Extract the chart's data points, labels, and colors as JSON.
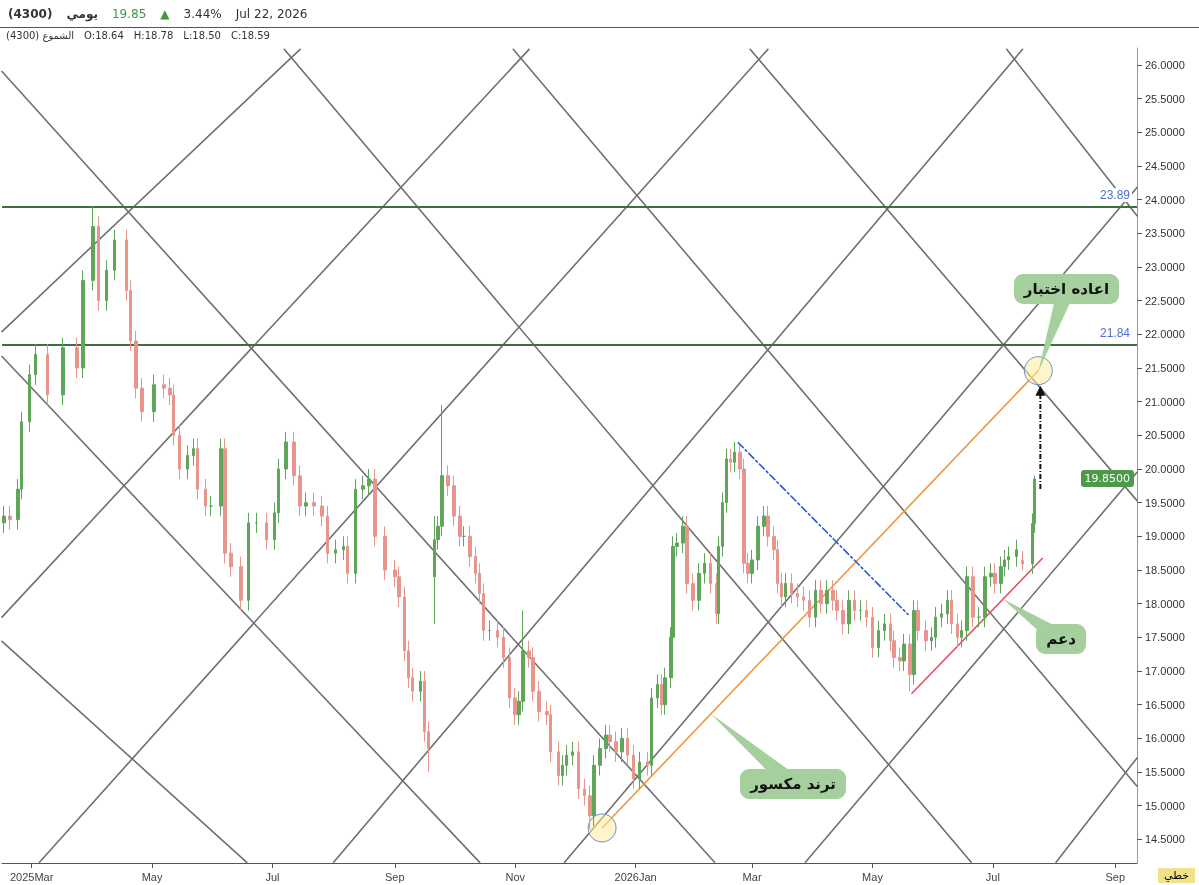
{
  "chart_data": {
    "type": "candlestick",
    "title": "(4300)",
    "subtitle": "يومي",
    "xlim": [
      "2025-02-14",
      "2026-09-12"
    ],
    "xticks": [
      {
        "value": "2025-03-01",
        "label": "2025Mar"
      },
      {
        "value": "2025-05-01",
        "label": "May"
      },
      {
        "value": "2025-07-01",
        "label": "Jul"
      },
      {
        "value": "2025-09-01",
        "label": "Sep"
      },
      {
        "value": "2025-11-01",
        "label": "Nov"
      },
      {
        "value": "2026-01-01",
        "label": "2026Jan"
      },
      {
        "value": "2026-03-01",
        "label": "Mar"
      },
      {
        "value": "2026-05-01",
        "label": "May"
      },
      {
        "value": "2026-07-01",
        "label": "Jul"
      },
      {
        "value": "2026-09-01",
        "label": "Sep"
      }
    ],
    "ylim": [
      14.15,
      26.25
    ],
    "yticks": [
      {
        "value": 14.5,
        "label": "14.5000"
      },
      {
        "value": 15,
        "label": "15.0000"
      },
      {
        "value": 15.5,
        "label": "15.5000"
      },
      {
        "value": 16,
        "label": "16.0000"
      },
      {
        "value": 16.5,
        "label": "16.5000"
      },
      {
        "value": 17,
        "label": "17.0000"
      },
      {
        "value": 17.5,
        "label": "17.5000"
      },
      {
        "value": 18,
        "label": "18.0000"
      },
      {
        "value": 18.5,
        "label": "18.5000"
      },
      {
        "value": 19,
        "label": "19.0000"
      },
      {
        "value": 19.5,
        "label": "19.5000"
      },
      {
        "value": 20,
        "label": "20.0000"
      },
      {
        "value": 20.5,
        "label": "20.5000"
      },
      {
        "value": 21,
        "label": "21.0000"
      },
      {
        "value": 21.5,
        "label": "21.5000"
      },
      {
        "value": 22,
        "label": "22.0000"
      },
      {
        "value": 22.5,
        "label": "22.5000"
      },
      {
        "value": 23,
        "label": "23.0000"
      },
      {
        "value": 23.5,
        "label": "23.5000"
      },
      {
        "value": 24,
        "label": "24.0000"
      },
      {
        "value": 24.5,
        "label": "24.5000"
      },
      {
        "value": 25,
        "label": "25.0000"
      },
      {
        "value": 25.5,
        "label": "25.5000"
      },
      {
        "value": 26,
        "label": "26.0000"
      }
    ],
    "ref_lines": [
      {
        "axis": "y",
        "value": 23.89,
        "label": "23.89",
        "color": "#3f6e3f"
      },
      {
        "axis": "y",
        "value": 21.84,
        "label": "21.84",
        "color": "#3f6e3f"
      }
    ],
    "annotations": [
      "19.85",
      "▲",
      "3.44%",
      "Jul 22, 2026",
      "الشموع (4300)",
      "O:18.64",
      "H:18.78",
      "L:18.50",
      "C:18.59",
      "خطي",
      "19.8500",
      "اعاده اختبار",
      "ترند مكسور",
      "دعم"
    ],
    "series": [
      {
        "type": "line",
        "color": "#707070",
        "x": [
          "2025-02-14",
          "2025-07-15"
        ],
        "values": [
          22.04,
          26.23
        ]
      },
      {
        "type": "line",
        "color": "#707070",
        "x": [
          "2025-02-14",
          "2025-11-08"
        ],
        "values": [
          17.8,
          26.23
        ]
      },
      {
        "type": "line",
        "color": "#707070",
        "x": [
          "2025-03-05",
          "2026-03-09"
        ],
        "values": [
          14.16,
          26.23
        ]
      },
      {
        "type": "line",
        "color": "#707070",
        "x": [
          "2025-08-01",
          "2026-07-16"
        ],
        "values": [
          14.16,
          26.23
        ]
      },
      {
        "type": "line",
        "color": "#707070",
        "x": [
          "2025-11-26",
          "2026-09-12"
        ],
        "values": [
          14.16,
          24.18
        ]
      },
      {
        "type": "line",
        "color": "#707070",
        "x": [
          "2026-03-28",
          "2026-09-12"
        ],
        "values": [
          14.16,
          19.95
        ]
      },
      {
        "type": "line",
        "color": "#707070",
        "x": [
          "2026-08-02",
          "2026-09-12"
        ],
        "values": [
          14.16,
          15.71
        ]
      },
      {
        "type": "line",
        "color": "#707070",
        "x": [
          "2025-02-14",
          "2025-06-18"
        ],
        "values": [
          17.44,
          14.16
        ]
      },
      {
        "type": "line",
        "color": "#707070",
        "x": [
          "2025-02-14",
          "2025-10-14"
        ],
        "values": [
          21.67,
          14.16
        ]
      },
      {
        "type": "line",
        "color": "#707070",
        "x": [
          "2025-02-14",
          "2026-02-10"
        ],
        "values": [
          25.9,
          14.16
        ]
      },
      {
        "type": "line",
        "color": "#707070",
        "x": [
          "2025-07-07",
          "2026-06-20"
        ],
        "values": [
          26.23,
          14.16
        ]
      },
      {
        "type": "line",
        "color": "#707070",
        "x": [
          "2025-10-31",
          "2026-09-12"
        ],
        "values": [
          26.23,
          15.29
        ]
      },
      {
        "type": "line",
        "color": "#707070",
        "x": [
          "2026-02-28",
          "2026-09-12"
        ],
        "values": [
          26.23,
          19.53
        ]
      },
      {
        "type": "line",
        "color": "#707070",
        "x": [
          "2026-07-08",
          "2026-09-12"
        ],
        "values": [
          26.23,
          23.76
        ]
      },
      {
        "type": "line",
        "color": "#f0963c",
        "marker": "circle",
        "x": [
          "2025-12-15",
          "2026-07-24"
        ],
        "values": [
          14.67,
          21.46
        ]
      },
      {
        "type": "line",
        "color": "#2f55d4",
        "line_style": "dashed",
        "x": [
          "2026-02-22",
          "2026-05-19"
        ],
        "values": [
          20.39,
          17.84
        ]
      },
      {
        "type": "line",
        "color": "#e0505f",
        "x": [
          "2026-05-21",
          "2026-07-26"
        ],
        "values": [
          16.67,
          18.67
        ]
      },
      {
        "colors": [
          "#5fa55a",
          "#e8958c",
          "#5fa55a",
          "#5fa55a",
          "#5fa55a",
          "#5fa55a",
          "#e8958c",
          "#5fa55a",
          "#e8958c",
          "#5fa55a",
          "#5fa55a",
          "#e8958c",
          "#5fa55a",
          "#5fa55a",
          "#e8958c",
          "#e8958c",
          "#e8958c",
          "#e8958c",
          "#5fa55a",
          "#e8958c",
          "#e8958c",
          "#e8958c",
          "#e8958c",
          "#5fa55a",
          "#5fa55a",
          "#e8958c",
          "#e8958c",
          "#5fa55a",
          "#5fa55a",
          "#e8958c",
          "#e8958c",
          "#e8958c",
          "#5fa55a",
          "#5fa55a",
          "#e8958c",
          "#5fa55a",
          "#5fa55a",
          "#5fa55a",
          "#e8958c",
          "#e8958c",
          "#5fa55a",
          "#e8958c",
          "#e8958c",
          "#e8958c",
          "#5fa55a",
          "#5fa55a",
          "#e8958c",
          "#5fa55a",
          "#5fa55a",
          "#5fa55a",
          "#e8958c",
          "#e8958c",
          "#e8958c",
          "#e8958c",
          "#e8958c",
          "#e8958c",
          "#e8958c",
          "#5fa55a",
          "#e8958c",
          "#e8958c",
          "#5fa55a",
          "#5fa55a",
          "#5fa55a",
          "#e8958c",
          "#e8958c",
          "#e8958c",
          "#5fa55a",
          "#e8958c",
          "#e8958c",
          "#e8958c",
          "#e8958c",
          "#5fa55a",
          "#e8958c",
          "#e8958c",
          "#e8958c",
          "#e8958c",
          "#5fa55a",
          "#5fa55a",
          "#e8958c",
          "#e8958c",
          "#e8958c",
          "#e8958c",
          "#e8958c",
          "#e8958c",
          "#5fa55a",
          "#5fa55a",
          "#5fa55a",
          "#e8958c",
          "#e8958c",
          "#e8958c",
          "#5fa55a",
          "#5fa55a",
          "#5fa55a",
          "#e8958c",
          "#e8958c",
          "#5fa55a",
          "#e8958c",
          "#e8958c",
          "#5fa55a",
          "#e8958c",
          "#5fa55a",
          "#5fa55a",
          "#e8958c",
          "#5fa55a",
          "#5fa55a",
          "#5fa55a",
          "#5fa55a",
          "#5fa55a",
          "#e8958c",
          "#e8958c",
          "#5fa55a",
          "#5fa55a",
          "#e8958c",
          "#e8958c",
          "#5fa55a",
          "#5fa55a",
          "#5fa55a",
          "#e8958c",
          "#5fa55a",
          "#e8958c",
          "#e8958c",
          "#e8958c",
          "#5fa55a",
          "#5fa55a",
          "#5fa55a",
          "#e8958c",
          "#e8958c",
          "#e8958c",
          "#e8958c",
          "#5fa55a",
          "#e8958c",
          "#e8958c",
          "#e8958c",
          "#e8958c",
          "#5fa55a",
          "#e8958c",
          "#5fa55a",
          "#e8958c",
          "#e8958c",
          "#e8958c",
          "#5fa55a",
          "#e8958c",
          "#5fa55a",
          "#e8958c",
          "#e8958c",
          "#5fa55a",
          "#5fa55a",
          "#e8958c",
          "#e8958c",
          "#e8958c",
          "#5fa55a",
          "#e8958c",
          "#5fa55a",
          "#e8958c",
          "#e8958c",
          "#5fa55a",
          "#5fa55a",
          "#5fa55a",
          "#5fa55a",
          "#e8958c",
          "#e8958c",
          "#5fa55a",
          "#5fa55a",
          "#e8958c",
          "#5fa55a",
          "#5fa55a",
          "#5fa55a",
          "#e8958c",
          "#5fa55a",
          "#5fa55a",
          "#5fa55a",
          "#5fa55a",
          "#e8958c",
          "#5fa55a",
          "#5fa55a"
        ],
        "x": [
          "2025-02-15",
          "2025-02-18",
          "2025-02-22",
          "2025-02-24",
          "2025-02-28",
          "2025-03-03",
          "2025-03-09",
          "2025-03-17",
          "2025-03-24",
          "2025-03-27",
          "2025-04-01",
          "2025-04-04",
          "2025-04-08",
          "2025-04-12",
          "2025-04-18",
          "2025-04-20",
          "2025-04-23",
          "2025-04-26",
          "2025-05-02",
          "2025-05-07",
          "2025-05-10",
          "2025-05-12",
          "2025-05-15",
          "2025-05-19",
          "2025-05-22",
          "2025-05-24",
          "2025-05-28",
          "2025-05-31",
          "2025-06-05",
          "2025-06-07",
          "2025-06-10",
          "2025-06-15",
          "2025-06-19",
          "2025-06-23",
          "2025-06-28",
          "2025-07-02",
          "2025-07-04",
          "2025-07-08",
          "2025-07-12",
          "2025-07-15",
          "2025-07-18",
          "2025-07-22",
          "2025-07-26",
          "2025-07-29",
          "2025-08-02",
          "2025-08-06",
          "2025-08-08",
          "2025-08-12",
          "2025-08-16",
          "2025-08-19",
          "2025-08-22",
          "2025-08-27",
          "2025-09-01",
          "2025-09-03",
          "2025-09-06",
          "2025-09-08",
          "2025-09-10",
          "2025-09-14",
          "2025-09-16",
          "2025-09-18",
          "2025-09-21",
          "2025-09-23",
          "2025-09-25",
          "2025-09-28",
          "2025-10-01",
          "2025-10-04",
          "2025-10-06",
          "2025-10-09",
          "2025-10-12",
          "2025-10-14",
          "2025-10-16",
          "2025-10-19",
          "2025-10-23",
          "2025-10-26",
          "2025-10-29",
          "2025-11-01",
          "2025-11-03",
          "2025-11-05",
          "2025-11-08",
          "2025-11-10",
          "2025-11-13",
          "2025-11-17",
          "2025-11-19",
          "2025-11-23",
          "2025-11-25",
          "2025-11-27",
          "2025-11-30",
          "2025-12-03",
          "2025-12-06",
          "2025-12-09",
          "2025-12-11",
          "2025-12-14",
          "2025-12-17",
          "2025-12-19",
          "2025-12-22",
          "2025-12-25",
          "2025-12-28",
          "2025-12-31",
          "2026-01-03",
          "2026-01-07",
          "2026-01-09",
          "2026-01-12",
          "2026-01-14",
          "2026-01-16",
          "2026-01-19",
          "2026-01-20",
          "2026-01-22",
          "2026-01-25",
          "2026-01-27",
          "2026-01-30",
          "2026-02-02",
          "2026-02-05",
          "2026-02-08",
          "2026-02-11",
          "2026-02-12",
          "2026-02-14",
          "2026-02-16",
          "2026-02-18",
          "2026-02-20",
          "2026-02-23",
          "2026-02-25",
          "2026-02-27",
          "2026-03-01",
          "2026-03-04",
          "2026-03-07",
          "2026-03-09",
          "2026-03-12",
          "2026-03-14",
          "2026-03-16",
          "2026-03-18",
          "2026-03-21",
          "2026-03-24",
          "2026-03-27",
          "2026-03-30",
          "2026-04-02",
          "2026-04-05",
          "2026-04-08",
          "2026-04-11",
          "2026-04-13",
          "2026-04-16",
          "2026-04-19",
          "2026-04-22",
          "2026-04-25",
          "2026-04-28",
          "2026-05-01",
          "2026-05-04",
          "2026-05-07",
          "2026-05-10",
          "2026-05-12",
          "2026-05-15",
          "2026-05-17",
          "2026-05-20",
          "2026-05-22",
          "2026-05-24",
          "2026-05-28",
          "2026-05-31",
          "2026-06-02",
          "2026-06-05",
          "2026-06-08",
          "2026-06-10",
          "2026-06-13",
          "2026-06-15",
          "2026-06-18",
          "2026-06-21",
          "2026-06-24",
          "2026-06-27",
          "2026-06-30",
          "2026-07-02",
          "2026-07-05",
          "2026-07-07",
          "2026-07-09",
          "2026-07-13",
          "2026-07-16",
          "2026-07-21",
          "2026-07-22"
        ],
        "ohlc": [
          [
            19.2,
            19.45,
            19.05,
            19.3
          ],
          [
            19.3,
            19.45,
            19.1,
            19.25
          ],
          [
            19.25,
            19.85,
            19.1,
            19.7
          ],
          [
            19.7,
            20.85,
            19.55,
            20.7
          ],
          [
            20.7,
            21.55,
            20.55,
            21.4
          ],
          [
            21.4,
            21.85,
            21.25,
            21.7
          ],
          [
            21.7,
            21.85,
            20.95,
            21.1
          ],
          [
            21.1,
            21.95,
            20.95,
            21.8
          ],
          [
            21.8,
            21.95,
            21.35,
            21.5
          ],
          [
            21.5,
            22.95,
            21.35,
            22.8
          ],
          [
            22.8,
            23.9,
            22.65,
            23.6
          ],
          [
            23.6,
            23.75,
            22.35,
            22.5
          ],
          [
            22.5,
            23.1,
            22.35,
            22.95
          ],
          [
            22.95,
            23.55,
            22.8,
            23.4
          ],
          [
            23.4,
            23.55,
            22.5,
            22.65
          ],
          [
            22.65,
            22.8,
            21.75,
            21.9
          ],
          [
            21.9,
            22.05,
            21.05,
            21.2
          ],
          [
            21.2,
            21.35,
            20.7,
            20.85
          ],
          [
            20.85,
            21.4,
            20.7,
            21.25
          ],
          [
            21.25,
            21.4,
            21.05,
            21.2
          ],
          [
            21.2,
            21.35,
            20.95,
            21.1
          ],
          [
            21.1,
            21.25,
            20.35,
            20.5
          ],
          [
            20.5,
            20.65,
            19.85,
            20.0
          ],
          [
            20.0,
            20.35,
            19.85,
            20.2
          ],
          [
            20.2,
            20.45,
            20.05,
            20.3
          ],
          [
            20.3,
            20.45,
            19.55,
            19.7
          ],
          [
            19.7,
            19.85,
            19.3,
            19.45
          ],
          [
            19.45,
            19.6,
            19.3,
            19.45
          ],
          [
            19.45,
            20.45,
            19.3,
            20.3
          ],
          [
            20.3,
            20.45,
            18.6,
            18.75
          ],
          [
            18.75,
            18.9,
            18.4,
            18.55
          ],
          [
            18.55,
            18.7,
            17.9,
            18.05
          ],
          [
            18.05,
            19.35,
            17.9,
            19.2
          ],
          [
            19.2,
            19.35,
            19.05,
            19.2
          ],
          [
            19.2,
            19.35,
            18.8,
            18.95
          ],
          [
            18.95,
            19.5,
            18.8,
            19.35
          ],
          [
            19.35,
            20.15,
            19.2,
            20.0
          ],
          [
            20.0,
            20.55,
            19.85,
            20.4
          ],
          [
            20.4,
            20.55,
            19.75,
            19.9
          ],
          [
            19.9,
            20.05,
            19.3,
            19.45
          ],
          [
            19.45,
            19.65,
            19.3,
            19.5
          ],
          [
            19.5,
            19.65,
            19.3,
            19.45
          ],
          [
            19.45,
            19.6,
            19.15,
            19.3
          ],
          [
            19.3,
            19.45,
            18.6,
            18.75
          ],
          [
            18.75,
            18.95,
            18.6,
            18.8
          ],
          [
            18.8,
            19.0,
            18.65,
            18.85
          ],
          [
            18.85,
            19.0,
            18.3,
            18.45
          ],
          [
            18.45,
            19.85,
            18.3,
            19.7
          ],
          [
            19.7,
            19.9,
            19.55,
            19.75
          ],
          [
            19.75,
            20.0,
            19.6,
            19.85
          ],
          [
            19.85,
            20.0,
            18.85,
            19.0
          ],
          [
            19.0,
            19.15,
            18.35,
            18.5
          ],
          [
            18.5,
            18.65,
            18.25,
            18.4
          ],
          [
            18.4,
            18.55,
            17.95,
            18.1
          ],
          [
            18.1,
            18.25,
            17.15,
            17.3
          ],
          [
            17.3,
            17.45,
            16.75,
            16.9
          ],
          [
            16.9,
            17.05,
            16.55,
            16.7
          ],
          [
            16.7,
            17.0,
            16.55,
            16.85
          ],
          [
            16.85,
            17.0,
            15.95,
            16.1
          ],
          [
            16.1,
            16.25,
            15.5,
            15.85
          ],
          [
            18.4,
            19.3,
            17.7,
            18.95
          ],
          [
            18.95,
            19.3,
            18.8,
            19.15
          ],
          [
            19.15,
            20.95,
            19.0,
            19.9
          ],
          [
            19.9,
            20.05,
            19.6,
            19.75
          ],
          [
            19.75,
            19.9,
            19.15,
            19.3
          ],
          [
            19.3,
            19.45,
            18.85,
            19.0
          ],
          [
            19.0,
            19.15,
            18.85,
            19.0
          ],
          [
            19.0,
            19.15,
            18.55,
            18.7
          ],
          [
            18.7,
            18.85,
            18.3,
            18.45
          ],
          [
            18.45,
            18.6,
            18.0,
            18.15
          ],
          [
            18.15,
            18.3,
            17.45,
            17.6
          ],
          [
            17.6,
            17.75,
            17.45,
            17.6
          ],
          [
            17.6,
            17.75,
            17.35,
            17.5
          ],
          [
            17.5,
            17.65,
            17.05,
            17.2
          ],
          [
            17.2,
            17.35,
            16.45,
            16.6
          ],
          [
            16.6,
            16.75,
            16.2,
            16.35
          ],
          [
            16.35,
            16.7,
            16.2,
            16.55
          ],
          [
            16.55,
            17.9,
            16.4,
            17.3
          ],
          [
            17.3,
            17.45,
            17.05,
            17.2
          ],
          [
            17.2,
            17.35,
            16.55,
            16.7
          ],
          [
            16.7,
            16.85,
            16.25,
            16.4
          ],
          [
            16.4,
            16.55,
            16.2,
            16.35
          ],
          [
            16.35,
            16.5,
            15.65,
            15.8
          ],
          [
            15.8,
            15.95,
            15.3,
            15.45
          ],
          [
            15.45,
            15.75,
            15.3,
            15.6
          ],
          [
            15.6,
            15.9,
            15.45,
            15.75
          ],
          [
            15.75,
            15.95,
            15.6,
            15.8
          ],
          [
            15.8,
            15.95,
            15.1,
            15.25
          ],
          [
            15.25,
            15.4,
            15.0,
            15.15
          ],
          [
            15.15,
            15.3,
            14.65,
            14.85
          ],
          [
            14.85,
            15.75,
            14.7,
            15.6
          ],
          [
            15.6,
            16.0,
            15.45,
            15.85
          ],
          [
            15.85,
            16.2,
            15.7,
            16.05
          ],
          [
            16.05,
            16.2,
            15.8,
            15.95
          ],
          [
            15.95,
            16.1,
            15.65,
            15.8
          ],
          [
            15.8,
            16.15,
            15.65,
            16.0
          ],
          [
            16.0,
            16.15,
            15.6,
            15.75
          ],
          [
            15.75,
            15.9,
            15.25,
            15.4
          ],
          [
            15.4,
            15.8,
            15.25,
            15.65
          ],
          [
            15.65,
            15.8,
            15.45,
            15.6
          ],
          [
            15.6,
            16.75,
            15.45,
            16.6
          ],
          [
            16.6,
            16.95,
            16.45,
            16.8
          ],
          [
            16.8,
            16.95,
            16.35,
            16.5
          ],
          [
            16.5,
            17.05,
            16.35,
            16.9
          ],
          [
            16.9,
            17.65,
            16.75,
            17.5
          ],
          [
            17.5,
            19.0,
            17.35,
            18.85
          ],
          [
            18.85,
            19.05,
            18.7,
            18.9
          ],
          [
            18.9,
            19.3,
            18.75,
            19.15
          ],
          [
            19.15,
            19.3,
            18.15,
            18.3
          ],
          [
            18.3,
            18.45,
            17.9,
            18.05
          ],
          [
            18.05,
            18.6,
            17.9,
            18.45
          ],
          [
            18.45,
            18.75,
            18.3,
            18.6
          ],
          [
            18.6,
            18.75,
            18.15,
            18.3
          ],
          [
            18.3,
            18.45,
            17.7,
            17.85
          ],
          [
            17.85,
            19.0,
            17.7,
            18.85
          ],
          [
            18.85,
            19.65,
            18.7,
            19.5
          ],
          [
            19.5,
            20.3,
            19.35,
            20.15
          ],
          [
            20.15,
            20.3,
            19.95,
            20.1
          ],
          [
            20.1,
            20.4,
            19.95,
            20.25
          ],
          [
            20.25,
            20.35,
            19.85,
            20.0
          ],
          [
            20.0,
            20.15,
            18.45,
            18.6
          ],
          [
            18.6,
            18.75,
            18.3,
            18.45
          ],
          [
            18.45,
            18.8,
            18.3,
            18.65
          ],
          [
            18.65,
            19.3,
            18.5,
            19.15
          ],
          [
            19.15,
            19.45,
            19.0,
            19.3
          ],
          [
            19.3,
            19.45,
            18.85,
            19.0
          ],
          [
            19.0,
            19.15,
            18.65,
            18.8
          ],
          [
            18.8,
            18.95,
            18.15,
            18.3
          ],
          [
            18.3,
            18.45,
            17.95,
            18.1
          ],
          [
            18.1,
            18.45,
            17.95,
            18.3
          ],
          [
            18.3,
            18.45,
            18.0,
            18.15
          ],
          [
            18.15,
            18.3,
            17.95,
            18.1
          ],
          [
            18.1,
            18.25,
            17.9,
            18.05
          ],
          [
            18.05,
            18.2,
            17.65,
            17.8
          ],
          [
            17.8,
            18.35,
            17.65,
            18.2
          ],
          [
            18.2,
            18.35,
            17.85,
            18.0
          ],
          [
            18.0,
            18.35,
            17.85,
            18.2
          ],
          [
            18.2,
            18.35,
            17.9,
            18.05
          ],
          [
            18.05,
            18.2,
            17.75,
            17.9
          ],
          [
            17.9,
            18.05,
            17.55,
            17.7
          ],
          [
            17.7,
            18.2,
            17.55,
            18.05
          ],
          [
            18.05,
            18.2,
            17.75,
            17.9
          ],
          [
            17.9,
            18.05,
            17.75,
            17.9
          ],
          [
            17.9,
            18.05,
            17.65,
            17.8
          ],
          [
            17.8,
            17.95,
            17.2,
            17.35
          ],
          [
            17.35,
            17.75,
            17.2,
            17.6
          ],
          [
            17.6,
            17.85,
            17.45,
            17.7
          ],
          [
            17.7,
            17.85,
            17.3,
            17.45
          ],
          [
            17.45,
            17.6,
            17.05,
            17.2
          ],
          [
            17.2,
            17.35,
            17.0,
            17.15
          ],
          [
            17.15,
            17.55,
            17.0,
            17.4
          ],
          [
            17.4,
            17.55,
            16.7,
            16.95
          ],
          [
            16.95,
            18.05,
            16.8,
            17.9
          ],
          [
            17.9,
            18.05,
            17.45,
            17.6
          ],
          [
            17.6,
            17.75,
            17.3,
            17.45
          ],
          [
            17.45,
            17.65,
            17.3,
            17.5
          ],
          [
            17.5,
            17.95,
            17.35,
            17.8
          ],
          [
            17.8,
            18.0,
            17.65,
            17.85
          ],
          [
            17.85,
            18.2,
            17.7,
            18.05
          ],
          [
            18.05,
            18.2,
            17.55,
            17.7
          ],
          [
            17.7,
            17.85,
            17.35,
            17.5
          ],
          [
            17.5,
            17.75,
            17.35,
            17.6
          ],
          [
            17.6,
            18.55,
            17.45,
            18.4
          ],
          [
            18.4,
            18.55,
            17.65,
            17.8
          ],
          [
            17.8,
            17.95,
            17.65,
            17.8
          ],
          [
            17.8,
            18.55,
            17.65,
            18.4
          ],
          [
            18.4,
            18.6,
            18.25,
            18.45
          ],
          [
            18.45,
            18.6,
            18.15,
            18.3
          ],
          [
            18.3,
            18.7,
            18.15,
            18.55
          ],
          [
            18.55,
            18.8,
            18.4,
            18.65
          ],
          [
            18.65,
            18.85,
            18.5,
            18.7
          ],
          [
            18.7,
            18.95,
            18.55,
            18.8
          ],
          [
            18.64,
            18.78,
            18.5,
            18.59
          ],
          [
            18.59,
            19.34,
            18.44,
            19.19
          ],
          [
            19.19,
            19.9,
            19.05,
            19.85
          ]
        ]
      }
    ]
  }
}
